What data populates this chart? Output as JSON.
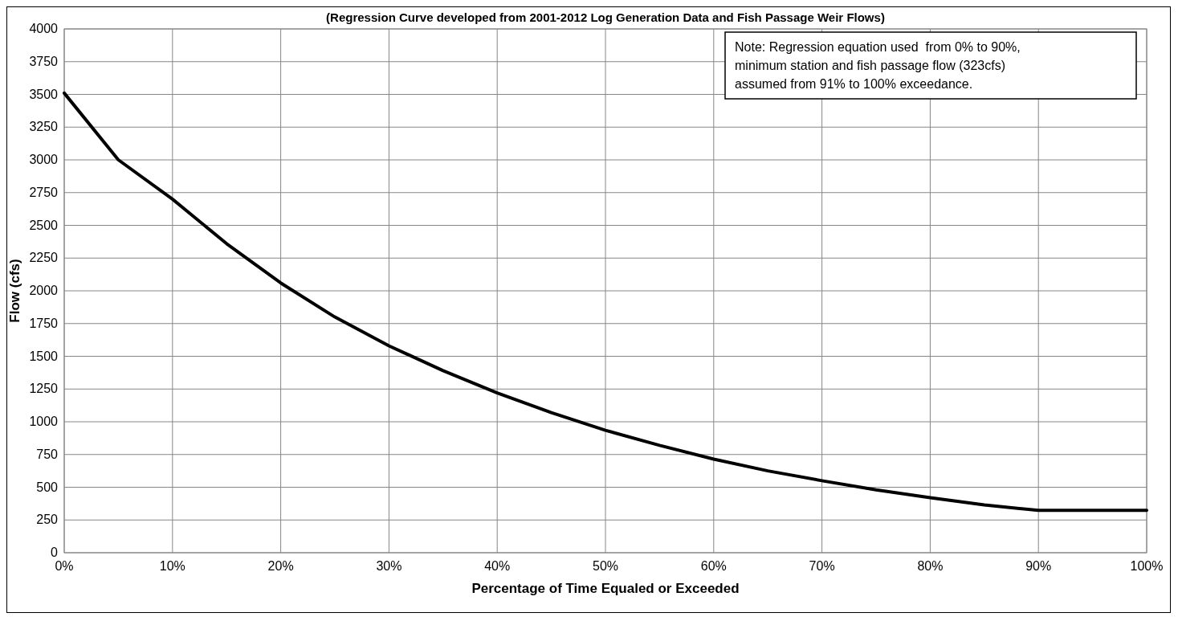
{
  "chart_data": {
    "type": "line",
    "title": "(Regression Curve developed from 2001-2012 Log Generation Data and Fish Passage Weir Flows)",
    "xlabel": "Percentage of Time Equaled or Exceeded",
    "ylabel": "Flow (cfs)",
    "x": [
      0,
      5,
      10,
      15,
      20,
      25,
      30,
      35,
      40,
      45,
      50,
      55,
      60,
      65,
      70,
      75,
      80,
      85,
      90,
      91,
      100
    ],
    "series": [
      {
        "color": "#000000",
        "values": [
          3510,
          3000,
          2700,
          2360,
          2060,
          1800,
          1580,
          1390,
          1220,
          1070,
          935,
          820,
          715,
          625,
          550,
          480,
          420,
          365,
          323,
          323,
          323
        ]
      }
    ],
    "xlim": [
      0,
      100
    ],
    "xticks": [
      {
        "value": 0,
        "label": "0%"
      },
      {
        "value": 10,
        "label": "10%"
      },
      {
        "value": 20,
        "label": "20%"
      },
      {
        "value": 30,
        "label": "30%"
      },
      {
        "value": 40,
        "label": "40%"
      },
      {
        "value": 50,
        "label": "50%"
      },
      {
        "value": 60,
        "label": "60%"
      },
      {
        "value": 70,
        "label": "70%"
      },
      {
        "value": 80,
        "label": "80%"
      },
      {
        "value": 90,
        "label": "90%"
      },
      {
        "value": 100,
        "label": "100%"
      }
    ],
    "ylim": [
      0,
      4000
    ],
    "yticks": [
      0,
      250,
      500,
      750,
      1000,
      1250,
      1500,
      1750,
      2000,
      2250,
      2500,
      2750,
      3000,
      3250,
      3500,
      3750,
      4000
    ],
    "grid": true,
    "marker": "none",
    "line_style": "solid",
    "annotations": [
      "Note: Regression equation used  from 0% to 90%, minimum station and fish passage flow (323cfs) assumed from 91% to 100% exceedance."
    ]
  }
}
